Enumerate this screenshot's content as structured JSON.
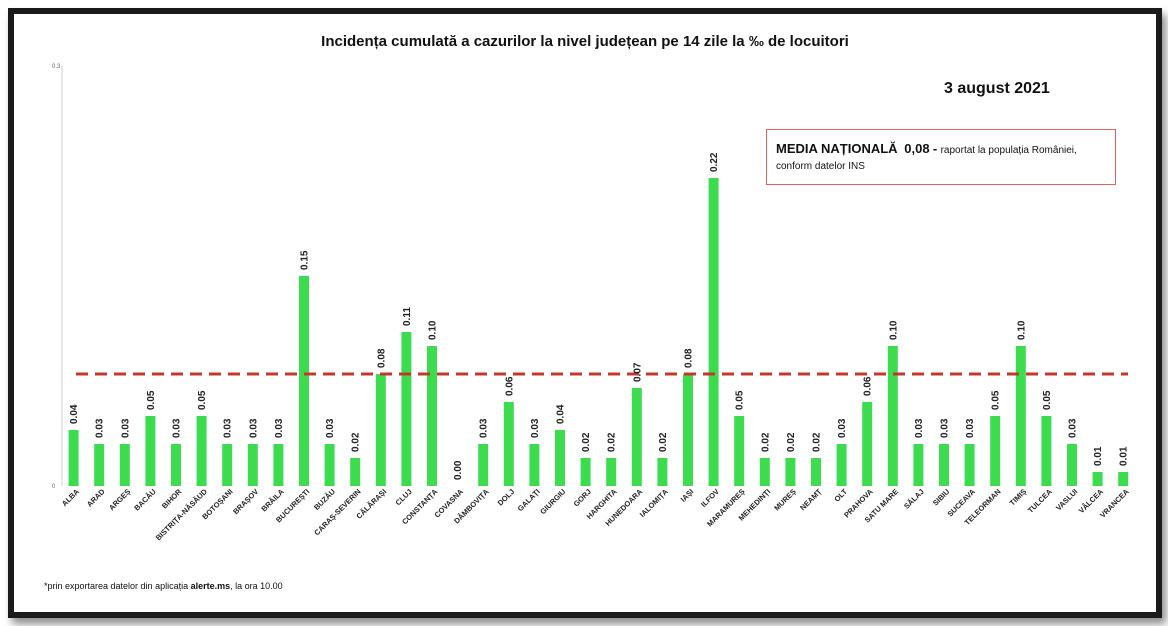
{
  "chart_data": {
    "type": "bar",
    "title": "Incidența cumulată a cazurilor la nivel județean pe 14 zile   la ‰ de locuitori",
    "subtitle": "3 august 2021",
    "xlabel": "",
    "ylabel": "",
    "ylim": [
      0,
      0.3
    ],
    "y_ticks": [
      "0",
      "0.3"
    ],
    "grid": false,
    "categories": [
      "ALBA",
      "ARAD",
      "ARGEȘ",
      "BACĂU",
      "BIHOR",
      "BISTRIȚA-NĂSĂUD",
      "BOTOȘANI",
      "BRAȘOV",
      "BRĂILA",
      "BUCUREȘTI",
      "BUZĂU",
      "CARAȘ-SEVERIN",
      "CĂLĂRAȘI",
      "CLUJ",
      "CONSTANȚA",
      "COVASNA",
      "DÂMBOVIȚA",
      "DOLJ",
      "GALAȚI",
      "GIURGIU",
      "GORJ",
      "HARGHITA",
      "HUNEDOARA",
      "IALOMIȚA",
      "IAȘI",
      "ILFOV",
      "MARAMUREȘ",
      "MEHEDINȚI",
      "MUREȘ",
      "NEAMȚ",
      "OLT",
      "PRAHOVA",
      "SATU MARE",
      "SĂLAJ",
      "SIBIU",
      "SUCEAVA",
      "TELEORMAN",
      "TIMIȘ",
      "TULCEA",
      "VASLUI",
      "VÂLCEA",
      "VRANCEA"
    ],
    "values": [
      0.04,
      0.03,
      0.03,
      0.05,
      0.03,
      0.05,
      0.03,
      0.03,
      0.03,
      0.15,
      0.03,
      0.02,
      0.08,
      0.11,
      0.1,
      0.0,
      0.03,
      0.06,
      0.03,
      0.04,
      0.02,
      0.02,
      0.07,
      0.02,
      0.08,
      0.22,
      0.05,
      0.02,
      0.02,
      0.02,
      0.03,
      0.06,
      0.1,
      0.03,
      0.03,
      0.03,
      0.05,
      0.1,
      0.05,
      0.03,
      0.01,
      0.01
    ],
    "value_labels": [
      "0.04",
      "0.03",
      "0.03",
      "0.05",
      "0.03",
      "0.05",
      "0.03",
      "0.03",
      "0.03",
      "0.15",
      "0.03",
      "0.02",
      "0.08",
      "0.11",
      "0.10",
      "0.00",
      "0.03",
      "0.06",
      "0.03",
      "0.04",
      "0.02",
      "0.02",
      "0.07",
      "0.02",
      "0.08",
      "0.22",
      "0.05",
      "0.02",
      "0.02",
      "0.02",
      "0.03",
      "0.06",
      "0.10",
      "0.03",
      "0.03",
      "0.03",
      "0.05",
      "0.10",
      "0.05",
      "0.03",
      "0.01",
      "0.01"
    ],
    "reference_line": {
      "value": 0.08,
      "color": "#c0392b",
      "style": "dashed"
    },
    "bar_color": "#3ddc4f"
  },
  "annotation": {
    "label": "MEDIA NAȚIONALĂ",
    "value": "0,08",
    "dash": "-",
    "text": "raportat la populația României,",
    "text2": "conform datelor INS"
  },
  "footnote": {
    "prefix": "*prin exportarea datelor din aplicația",
    "app": "alerte.ms",
    "suffix": ", la ora 10.00"
  }
}
